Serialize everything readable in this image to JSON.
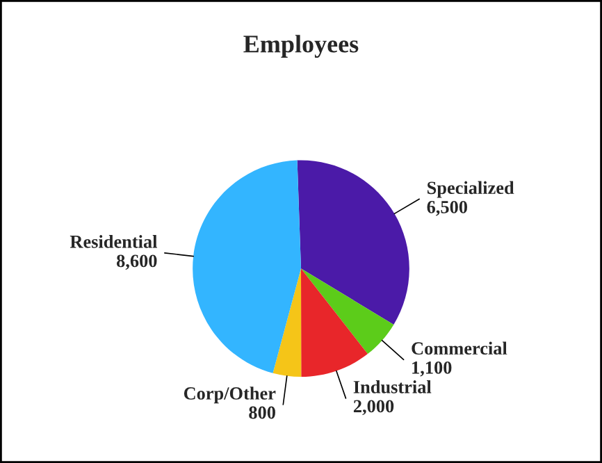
{
  "chart_data": {
    "type": "pie",
    "title": "Employees",
    "categories": [
      "Specialized",
      "Commercial",
      "Industrial",
      "Corp/Other",
      "Residential"
    ],
    "values": [
      6500,
      1100,
      2000,
      800,
      8600
    ],
    "value_labels": [
      "6,500",
      "1,100",
      "2,000",
      "800",
      "8,600"
    ],
    "colors": [
      "#4b1aa8",
      "#5ccc1a",
      "#e8262a",
      "#f5c518",
      "#33b5ff"
    ],
    "legend": false
  }
}
